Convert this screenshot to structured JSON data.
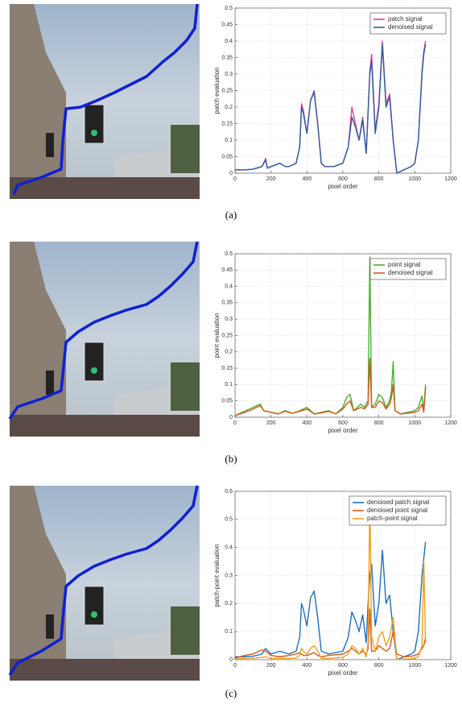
{
  "chart_data": [
    {
      "type": "line",
      "caption": "(a)",
      "xlabel": "pixel order",
      "ylabel": "patch evaluation",
      "xlim": [
        0,
        1200
      ],
      "xticks": [
        0,
        200,
        400,
        600,
        800,
        1000,
        1200
      ],
      "ylim": [
        0,
        0.5
      ],
      "yticks": [
        0,
        0.05,
        0.1,
        0.15,
        0.2,
        0.25,
        0.3,
        0.35,
        0.4,
        0.45,
        0.5
      ],
      "grid": true,
      "legend": "upper right",
      "x": [
        0,
        50,
        100,
        150,
        170,
        180,
        200,
        250,
        280,
        300,
        340,
        360,
        370,
        380,
        400,
        420,
        440,
        460,
        480,
        500,
        550,
        600,
        630,
        650,
        670,
        690,
        710,
        730,
        750,
        760,
        780,
        800,
        820,
        840,
        860,
        880,
        900,
        940,
        980,
        1000,
        1020,
        1040,
        1050,
        1060
      ],
      "series": [
        {
          "name": "patch signal",
          "color": "#e0409a",
          "values": [
            0.01,
            0.01,
            0.012,
            0.02,
            0.045,
            0.015,
            0.02,
            0.03,
            0.02,
            0.02,
            0.03,
            0.08,
            0.21,
            0.19,
            0.12,
            0.22,
            0.25,
            0.15,
            0.03,
            0.02,
            0.02,
            0.03,
            0.08,
            0.2,
            0.15,
            0.1,
            0.17,
            0.06,
            0.31,
            0.36,
            0.13,
            0.21,
            0.4,
            0.21,
            0.24,
            0.1,
            0.0,
            0.01,
            0.02,
            0.03,
            0.1,
            0.31,
            0.37,
            0.4
          ]
        },
        {
          "name": "denoised signal",
          "color": "#2b5f9e",
          "values": [
            0.01,
            0.01,
            0.012,
            0.02,
            0.04,
            0.015,
            0.02,
            0.03,
            0.02,
            0.02,
            0.03,
            0.08,
            0.2,
            0.18,
            0.12,
            0.22,
            0.245,
            0.15,
            0.03,
            0.02,
            0.02,
            0.03,
            0.08,
            0.17,
            0.14,
            0.1,
            0.16,
            0.06,
            0.3,
            0.34,
            0.12,
            0.2,
            0.39,
            0.2,
            0.23,
            0.1,
            0.0,
            0.01,
            0.02,
            0.03,
            0.1,
            0.3,
            0.36,
            0.39
          ]
        }
      ]
    },
    {
      "type": "line",
      "caption": "(b)",
      "xlabel": "pixel order",
      "ylabel": "point evaluation",
      "xlim": [
        0,
        1200
      ],
      "xticks": [
        0,
        200,
        400,
        600,
        800,
        1000,
        1200
      ],
      "ylim": [
        0,
        0.5
      ],
      "yticks": [
        0,
        0.05,
        0.1,
        0.15,
        0.2,
        0.25,
        0.3,
        0.35,
        0.4,
        0.45,
        0.5
      ],
      "grid": true,
      "legend": "upper right",
      "x": [
        0,
        40,
        80,
        120,
        140,
        160,
        200,
        240,
        280,
        320,
        360,
        400,
        440,
        480,
        520,
        560,
        600,
        620,
        640,
        660,
        700,
        720,
        740,
        750,
        760,
        780,
        800,
        820,
        840,
        860,
        870,
        880,
        890,
        920,
        960,
        1000,
        1020,
        1040,
        1050,
        1060
      ],
      "series": [
        {
          "name": "point signal",
          "color": "#4caf32",
          "values": [
            0.005,
            0.015,
            0.025,
            0.035,
            0.04,
            0.02,
            0.015,
            0.01,
            0.02,
            0.012,
            0.02,
            0.03,
            0.01,
            0.015,
            0.02,
            0.01,
            0.03,
            0.06,
            0.07,
            0.02,
            0.04,
            0.03,
            0.05,
            0.49,
            0.03,
            0.04,
            0.07,
            0.06,
            0.03,
            0.05,
            0.08,
            0.17,
            0.02,
            0.01,
            0.015,
            0.02,
            0.03,
            0.065,
            0.02,
            0.1
          ]
        },
        {
          "name": "denoised signal",
          "color": "#d35a1c",
          "values": [
            0.005,
            0.012,
            0.02,
            0.03,
            0.035,
            0.02,
            0.015,
            0.01,
            0.018,
            0.012,
            0.018,
            0.025,
            0.01,
            0.013,
            0.018,
            0.01,
            0.025,
            0.04,
            0.05,
            0.02,
            0.03,
            0.025,
            0.04,
            0.18,
            0.03,
            0.03,
            0.05,
            0.045,
            0.025,
            0.04,
            0.06,
            0.1,
            0.02,
            0.01,
            0.012,
            0.015,
            0.02,
            0.04,
            0.015,
            0.09
          ]
        }
      ]
    },
    {
      "type": "line",
      "caption": "(c)",
      "xlabel": "pixel order",
      "ylabel": "patch-point evaluation",
      "xlim": [
        0,
        1200
      ],
      "xticks": [
        0,
        200,
        400,
        600,
        800,
        1000,
        1200
      ],
      "ylim": [
        0,
        0.6
      ],
      "yticks": [
        0,
        0.1,
        0.2,
        0.3,
        0.4,
        0.5,
        0.6
      ],
      "grid": true,
      "legend": "upper right",
      "x": [
        0,
        50,
        100,
        150,
        170,
        200,
        250,
        300,
        340,
        360,
        370,
        380,
        400,
        420,
        440,
        460,
        480,
        520,
        600,
        630,
        650,
        670,
        690,
        710,
        730,
        740,
        750,
        760,
        780,
        800,
        820,
        840,
        860,
        880,
        900,
        940,
        980,
        1000,
        1020,
        1040,
        1050,
        1060
      ],
      "series": [
        {
          "name": "denoised patch signal",
          "color": "#1f6fb8",
          "values": [
            0.01,
            0.01,
            0.012,
            0.02,
            0.04,
            0.02,
            0.03,
            0.02,
            0.03,
            0.08,
            0.2,
            0.18,
            0.12,
            0.22,
            0.245,
            0.15,
            0.03,
            0.02,
            0.03,
            0.08,
            0.17,
            0.14,
            0.1,
            0.16,
            0.06,
            0.2,
            0.3,
            0.34,
            0.12,
            0.2,
            0.39,
            0.2,
            0.23,
            0.1,
            0.0,
            0.01,
            0.02,
            0.03,
            0.1,
            0.3,
            0.36,
            0.42
          ]
        },
        {
          "name": "denoised point signal",
          "color": "#d35a1c",
          "values": [
            0.005,
            0.015,
            0.02,
            0.035,
            0.03,
            0.015,
            0.01,
            0.015,
            0.02,
            0.025,
            0.02,
            0.015,
            0.015,
            0.02,
            0.025,
            0.015,
            0.01,
            0.015,
            0.02,
            0.03,
            0.04,
            0.03,
            0.02,
            0.03,
            0.02,
            0.04,
            0.18,
            0.03,
            0.03,
            0.05,
            0.04,
            0.03,
            0.04,
            0.1,
            0.02,
            0.01,
            0.012,
            0.015,
            0.02,
            0.04,
            0.05,
            0.08
          ]
        },
        {
          "name": "patch-point signal",
          "color": "#eea020",
          "values": [
            0.002,
            0.004,
            0.005,
            0.008,
            0.01,
            0.004,
            0.005,
            0.004,
            0.006,
            0.015,
            0.04,
            0.03,
            0.02,
            0.04,
            0.05,
            0.03,
            0.005,
            0.004,
            0.008,
            0.02,
            0.05,
            0.04,
            0.02,
            0.04,
            0.01,
            0.06,
            0.58,
            0.08,
            0.03,
            0.08,
            0.1,
            0.05,
            0.08,
            0.15,
            0.0,
            0.002,
            0.003,
            0.005,
            0.01,
            0.05,
            0.35,
            0.06
          ]
        }
      ]
    }
  ]
}
